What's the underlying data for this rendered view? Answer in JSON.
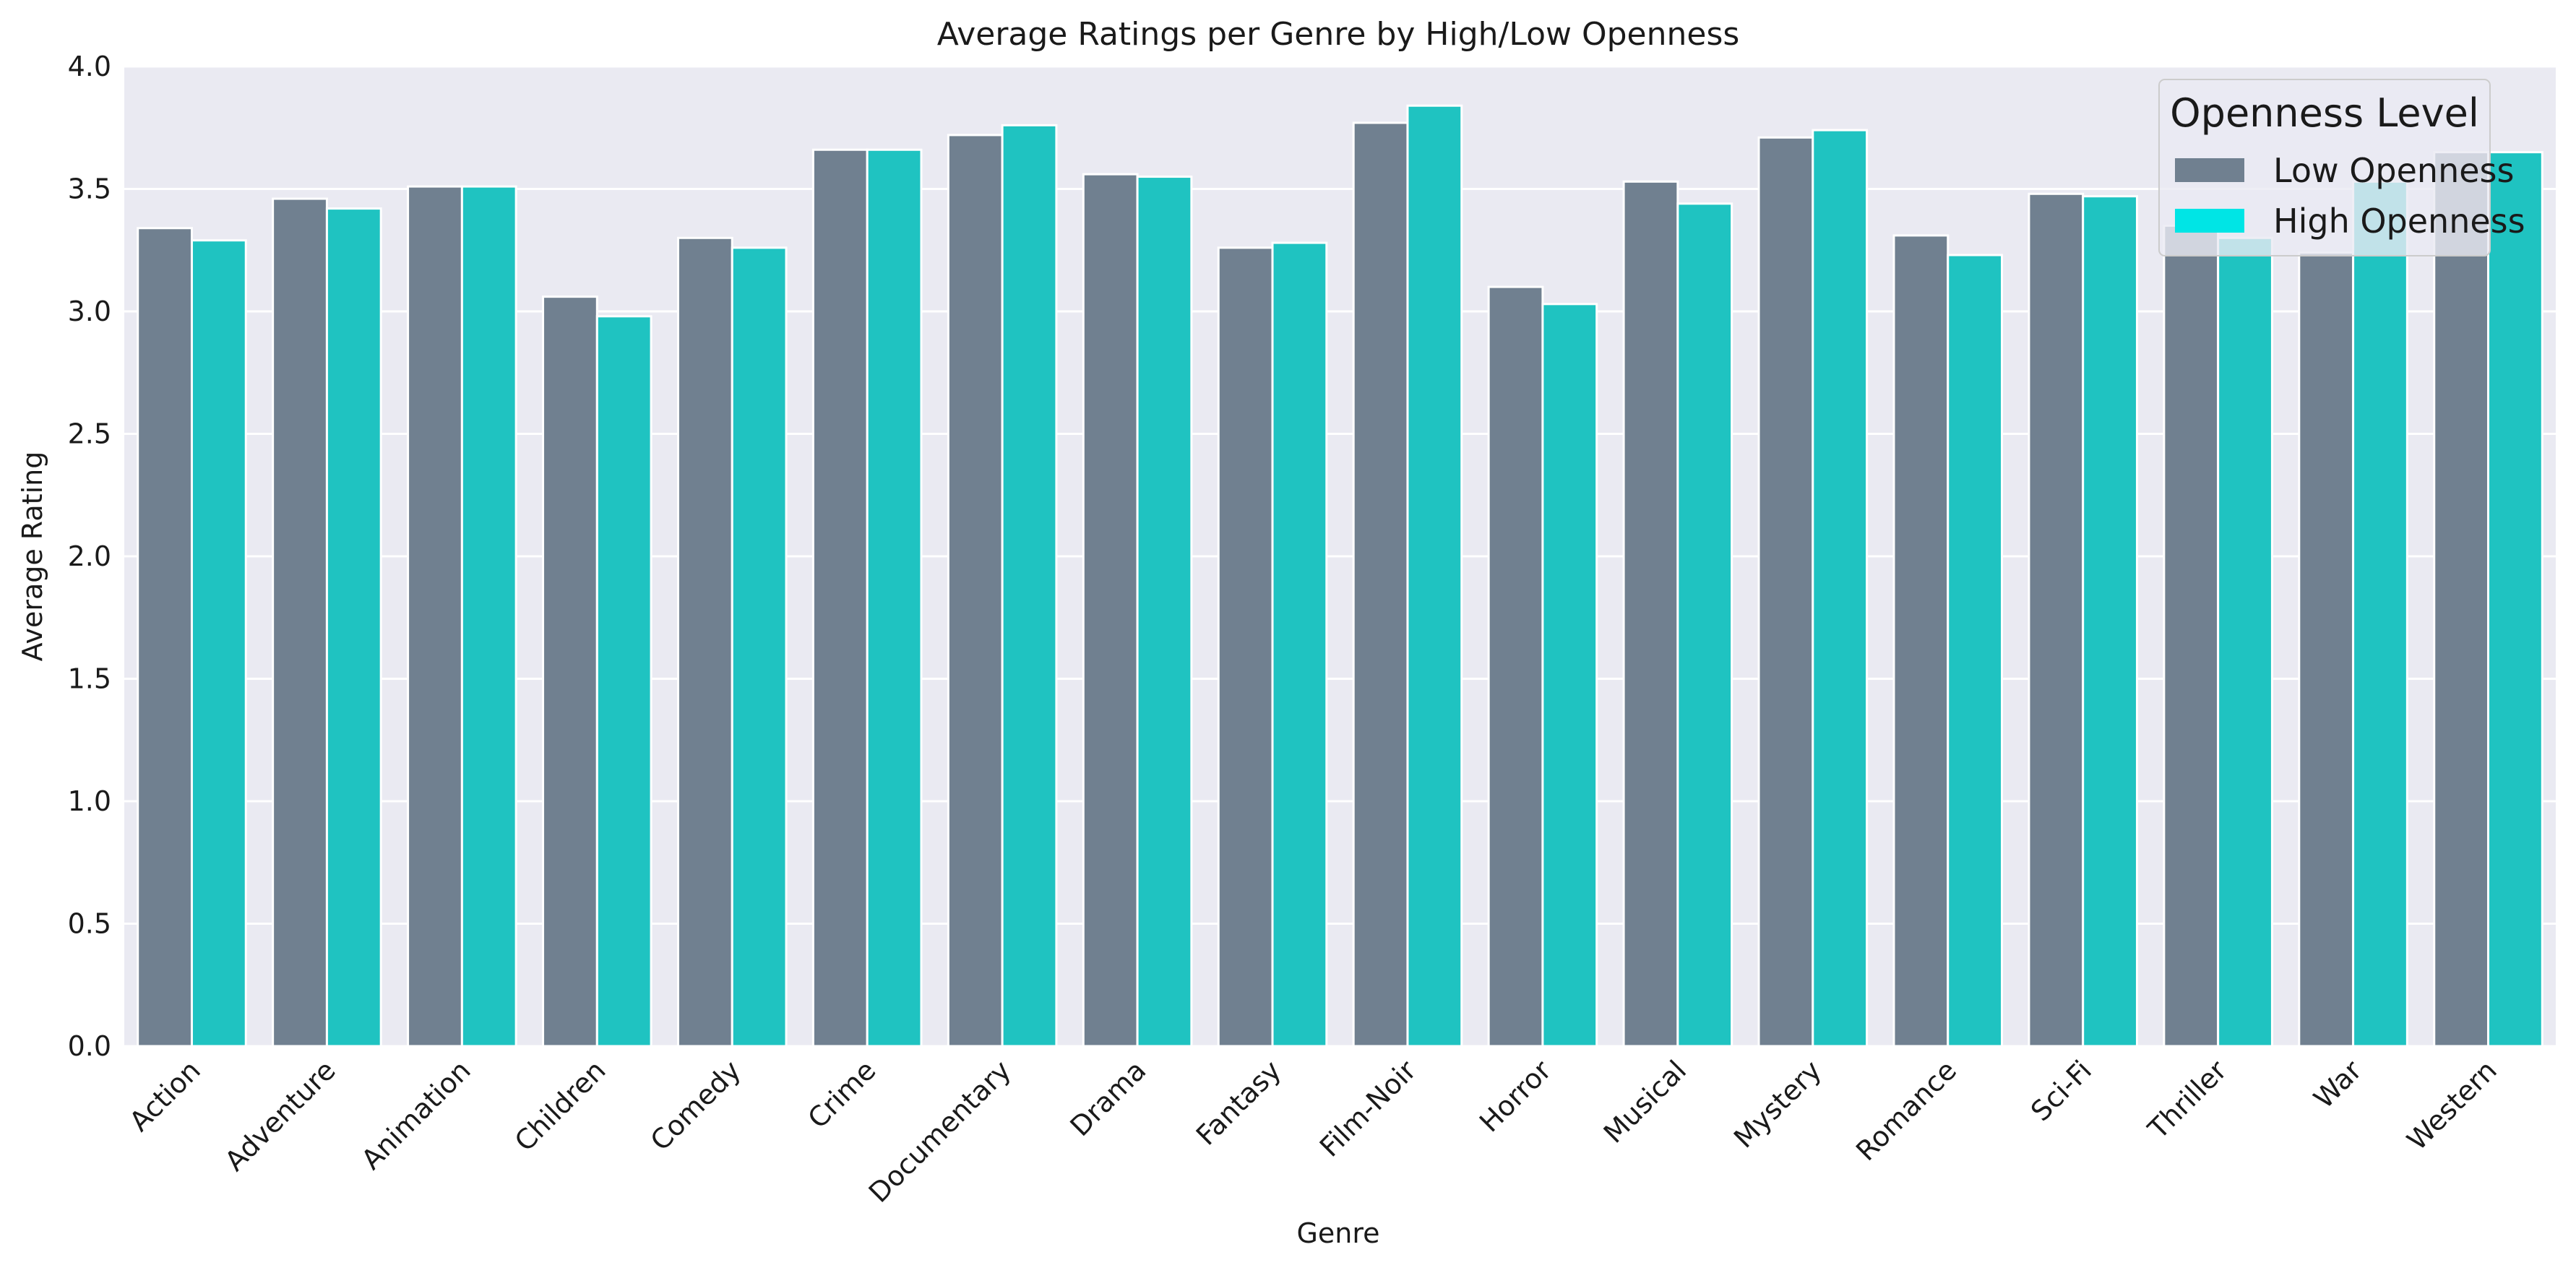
{
  "chart_data": {
    "type": "bar",
    "title": "Average Ratings per Genre by High/Low Openness",
    "xlabel": "Genre",
    "ylabel": "Average Rating",
    "ylim": [
      0,
      4.0
    ],
    "yticks": [
      "0.0",
      "0.5",
      "1.0",
      "1.5",
      "2.0",
      "2.5",
      "3.0",
      "3.5",
      "4.0"
    ],
    "grid": true,
    "legend": {
      "title": "Openness Level",
      "placement": "top-right"
    },
    "categories": [
      "Action",
      "Adventure",
      "Animation",
      "Children",
      "Comedy",
      "Crime",
      "Documentary",
      "Drama",
      "Fantasy",
      "Film-Noir",
      "Horror",
      "Musical",
      "Mystery",
      "Romance",
      "Sci-Fi",
      "Thriller",
      "War",
      "Western"
    ],
    "series": [
      {
        "name": "Low Openness",
        "color": "#708090",
        "values": [
          3.34,
          3.46,
          3.51,
          3.06,
          3.3,
          3.66,
          3.72,
          3.56,
          3.26,
          3.77,
          3.1,
          3.53,
          3.71,
          3.31,
          3.48,
          3.35,
          3.24,
          3.65
        ]
      },
      {
        "name": "High Openness",
        "color": "#1fc3c1",
        "legend_color": "#00e5e5",
        "values": [
          3.29,
          3.42,
          3.51,
          2.98,
          3.26,
          3.66,
          3.76,
          3.55,
          3.28,
          3.84,
          3.03,
          3.44,
          3.74,
          3.23,
          3.47,
          3.3,
          3.53,
          3.65
        ]
      }
    ]
  },
  "colors": {
    "plot_background": "#eaeaf2",
    "grid": "#ffffff"
  }
}
